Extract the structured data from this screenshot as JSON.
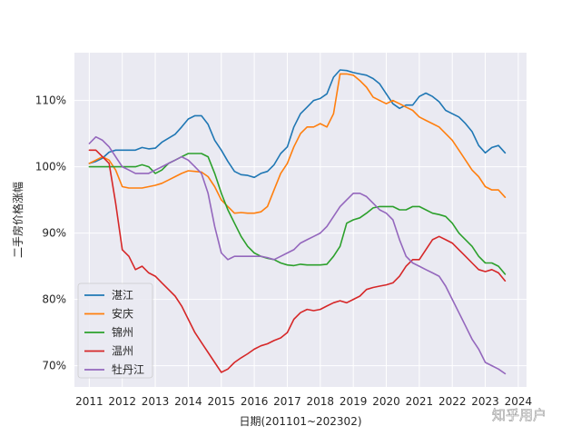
{
  "watermark": "知乎用户",
  "chart_data": {
    "type": "line",
    "xlabel": "日期(201101~202302)",
    "ylabel": "二手房价格涨幅",
    "xlim": [
      2010.55,
      2024.25
    ],
    "ylim": [
      66.8,
      117.2
    ],
    "xticks": [
      2011,
      2012,
      2013,
      2014,
      2015,
      2016,
      2017,
      2018,
      2019,
      2020,
      2021,
      2022,
      2023,
      2024
    ],
    "yticks": [
      70,
      80,
      90,
      100,
      110
    ],
    "ytick_format": "percent",
    "grid": true,
    "legend": "lower-left",
    "colors": [
      "#1f77b4",
      "#ff7f0e",
      "#2ca02c",
      "#d62728",
      "#9467bd"
    ],
    "series": [
      {
        "name": "湛江",
        "x": [
          2011.0,
          2011.2,
          2011.4,
          2011.6,
          2011.8,
          2012.0,
          2012.2,
          2012.4,
          2012.6,
          2012.8,
          2013.0,
          2013.2,
          2013.4,
          2013.6,
          2013.8,
          2014.0,
          2014.2,
          2014.4,
          2014.6,
          2014.8,
          2015.0,
          2015.2,
          2015.4,
          2015.6,
          2015.8,
          2016.0,
          2016.2,
          2016.4,
          2016.6,
          2016.8,
          2017.0,
          2017.2,
          2017.4,
          2017.6,
          2017.8,
          2018.0,
          2018.2,
          2018.4,
          2018.6,
          2018.8,
          2019.0,
          2019.2,
          2019.4,
          2019.6,
          2019.8,
          2020.0,
          2020.2,
          2020.4,
          2020.6,
          2020.8,
          2021.0,
          2021.2,
          2021.4,
          2021.6,
          2021.8,
          2022.0,
          2022.2,
          2022.4,
          2022.6,
          2022.8,
          2023.0,
          2023.2,
          2023.4,
          2023.6
        ],
        "values": [
          100.5,
          100.8,
          101.3,
          102.2,
          102.5,
          102.5,
          102.5,
          102.5,
          102.9,
          102.7,
          102.8,
          103.7,
          104.3,
          104.9,
          106.0,
          107.2,
          107.7,
          107.7,
          106.4,
          104.0,
          102.5,
          100.8,
          99.3,
          98.8,
          98.7,
          98.4,
          99.0,
          99.3,
          100.3,
          102.0,
          103.0,
          106.0,
          108.0,
          109.0,
          110.0,
          110.3,
          111.0,
          113.5,
          114.6,
          114.5,
          114.2,
          114.0,
          113.8,
          113.3,
          112.5,
          111.0,
          109.5,
          108.8,
          109.3,
          109.3,
          110.6,
          111.1,
          110.6,
          109.8,
          108.5,
          108.0,
          107.5,
          106.5,
          105.3,
          103.2,
          102.1,
          102.9,
          103.2,
          102.1
        ]
      },
      {
        "name": "安庆",
        "x": [
          2011.0,
          2011.2,
          2011.4,
          2011.6,
          2011.8,
          2012.0,
          2012.2,
          2012.4,
          2012.6,
          2012.8,
          2013.0,
          2013.2,
          2013.4,
          2013.6,
          2013.8,
          2014.0,
          2014.2,
          2014.4,
          2014.6,
          2014.8,
          2015.0,
          2015.2,
          2015.4,
          2015.6,
          2015.8,
          2016.0,
          2016.2,
          2016.4,
          2016.6,
          2016.8,
          2017.0,
          2017.2,
          2017.4,
          2017.6,
          2017.8,
          2018.0,
          2018.2,
          2018.4,
          2018.6,
          2018.8,
          2019.0,
          2019.2,
          2019.4,
          2019.6,
          2019.8,
          2020.0,
          2020.2,
          2020.4,
          2020.6,
          2020.8,
          2021.0,
          2021.2,
          2021.4,
          2021.6,
          2021.8,
          2022.0,
          2022.2,
          2022.4,
          2022.6,
          2022.8,
          2023.0,
          2023.2,
          2023.4,
          2023.6
        ],
        "values": [
          100.5,
          101.0,
          101.5,
          101.0,
          99.5,
          97.0,
          96.8,
          96.8,
          96.8,
          97.0,
          97.2,
          97.5,
          98.0,
          98.5,
          99.0,
          99.4,
          99.3,
          99.2,
          98.5,
          97.0,
          95.0,
          94.0,
          93.0,
          93.1,
          93.0,
          93.0,
          93.2,
          94.0,
          96.5,
          99.0,
          100.5,
          103.0,
          105.0,
          106.0,
          106.0,
          106.5,
          106.0,
          108.0,
          114.0,
          114.0,
          113.8,
          113.0,
          112.0,
          110.5,
          110.0,
          109.5,
          110.0,
          109.5,
          109.0,
          108.5,
          107.5,
          107.0,
          106.5,
          106.0,
          105.0,
          104.0,
          102.5,
          101.0,
          99.5,
          98.5,
          97.0,
          96.5,
          96.5,
          95.4
        ]
      },
      {
        "name": "锦州",
        "x": [
          2011.0,
          2011.2,
          2011.4,
          2011.6,
          2011.8,
          2012.0,
          2012.2,
          2012.4,
          2012.6,
          2012.8,
          2013.0,
          2013.2,
          2013.4,
          2013.6,
          2013.8,
          2014.0,
          2014.2,
          2014.4,
          2014.6,
          2014.8,
          2015.0,
          2015.2,
          2015.4,
          2015.6,
          2015.8,
          2016.0,
          2016.2,
          2016.4,
          2016.6,
          2016.8,
          2017.0,
          2017.2,
          2017.4,
          2017.6,
          2017.8,
          2018.0,
          2018.2,
          2018.4,
          2018.6,
          2018.8,
          2019.0,
          2019.2,
          2019.4,
          2019.6,
          2019.8,
          2020.0,
          2020.2,
          2020.4,
          2020.6,
          2020.8,
          2021.0,
          2021.2,
          2021.4,
          2021.6,
          2021.8,
          2022.0,
          2022.2,
          2022.4,
          2022.6,
          2022.8,
          2023.0,
          2023.2,
          2023.4,
          2023.6
        ],
        "values": [
          100.0,
          100.0,
          100.0,
          100.0,
          100.0,
          100.0,
          100.0,
          100.0,
          100.3,
          100.0,
          99.0,
          99.5,
          100.5,
          101.0,
          101.5,
          102.0,
          102.0,
          102.0,
          101.5,
          99.0,
          96.0,
          93.5,
          91.5,
          89.5,
          88.0,
          87.0,
          86.5,
          86.2,
          86.0,
          85.5,
          85.2,
          85.1,
          85.3,
          85.2,
          85.2,
          85.2,
          85.3,
          86.5,
          88.0,
          91.5,
          92.0,
          92.3,
          93.0,
          93.8,
          94.0,
          94.0,
          94.0,
          93.5,
          93.5,
          94.0,
          94.0,
          93.5,
          93.0,
          92.8,
          92.5,
          91.5,
          90.0,
          89.0,
          88.0,
          86.5,
          85.5,
          85.5,
          85.0,
          83.8
        ]
      },
      {
        "name": "温州",
        "x": [
          2011.0,
          2011.2,
          2011.4,
          2011.6,
          2011.8,
          2012.0,
          2012.2,
          2012.4,
          2012.6,
          2012.8,
          2013.0,
          2013.2,
          2013.4,
          2013.6,
          2013.8,
          2014.0,
          2014.2,
          2014.4,
          2014.6,
          2014.8,
          2015.0,
          2015.2,
          2015.4,
          2015.6,
          2015.8,
          2016.0,
          2016.2,
          2016.4,
          2016.6,
          2016.8,
          2017.0,
          2017.2,
          2017.4,
          2017.6,
          2017.8,
          2018.0,
          2018.2,
          2018.4,
          2018.6,
          2018.8,
          2019.0,
          2019.2,
          2019.4,
          2019.6,
          2019.8,
          2020.0,
          2020.2,
          2020.4,
          2020.6,
          2020.8,
          2021.0,
          2021.2,
          2021.4,
          2021.6,
          2021.8,
          2022.0,
          2022.2,
          2022.4,
          2022.6,
          2022.8,
          2023.0,
          2023.2,
          2023.4,
          2023.6
        ],
        "values": [
          102.5,
          102.5,
          101.5,
          100.5,
          94.5,
          87.5,
          86.5,
          84.5,
          85.0,
          84.0,
          83.5,
          82.5,
          81.5,
          80.5,
          79.0,
          77.0,
          75.0,
          73.5,
          72.0,
          70.5,
          69.0,
          69.5,
          70.5,
          71.2,
          71.8,
          72.5,
          73.0,
          73.3,
          73.8,
          74.2,
          75.0,
          77.0,
          78.0,
          78.5,
          78.3,
          78.5,
          79.0,
          79.5,
          79.8,
          79.5,
          80.0,
          80.5,
          81.5,
          81.8,
          82.0,
          82.2,
          82.5,
          83.5,
          85.0,
          86.0,
          86.0,
          87.5,
          89.0,
          89.5,
          89.0,
          88.5,
          87.5,
          86.5,
          85.5,
          84.5,
          84.2,
          84.5,
          84.0,
          82.8
        ]
      },
      {
        "name": "牡丹江",
        "x": [
          2011.0,
          2011.2,
          2011.4,
          2011.6,
          2011.8,
          2012.0,
          2012.2,
          2012.4,
          2012.6,
          2012.8,
          2013.0,
          2013.2,
          2013.4,
          2013.6,
          2013.8,
          2014.0,
          2014.2,
          2014.4,
          2014.6,
          2014.8,
          2015.0,
          2015.2,
          2015.4,
          2015.6,
          2015.8,
          2016.0,
          2016.2,
          2016.4,
          2016.6,
          2016.8,
          2017.0,
          2017.2,
          2017.4,
          2017.6,
          2017.8,
          2018.0,
          2018.2,
          2018.4,
          2018.6,
          2018.8,
          2019.0,
          2019.2,
          2019.4,
          2019.6,
          2019.8,
          2020.0,
          2020.2,
          2020.4,
          2020.6,
          2020.8,
          2021.0,
          2021.2,
          2021.4,
          2021.6,
          2021.8,
          2022.0,
          2022.2,
          2022.4,
          2022.6,
          2022.8,
          2023.0,
          2023.2,
          2023.4,
          2023.6
        ],
        "values": [
          103.5,
          104.5,
          104.0,
          103.0,
          101.5,
          100.0,
          99.5,
          99.0,
          99.0,
          99.0,
          99.5,
          100.0,
          100.5,
          101.0,
          101.5,
          101.0,
          100.0,
          99.0,
          96.0,
          91.0,
          87.0,
          86.0,
          86.5,
          86.5,
          86.5,
          86.5,
          86.5,
          86.3,
          86.0,
          86.5,
          87.0,
          87.5,
          88.5,
          89.0,
          89.5,
          90.0,
          91.0,
          92.5,
          94.0,
          95.0,
          96.0,
          96.0,
          95.5,
          94.5,
          93.5,
          93.0,
          92.0,
          89.0,
          86.5,
          85.5,
          85.0,
          84.5,
          84.0,
          83.5,
          82.0,
          80.0,
          78.0,
          76.0,
          74.0,
          72.5,
          70.5,
          70.0,
          69.5,
          68.8
        ]
      }
    ]
  }
}
